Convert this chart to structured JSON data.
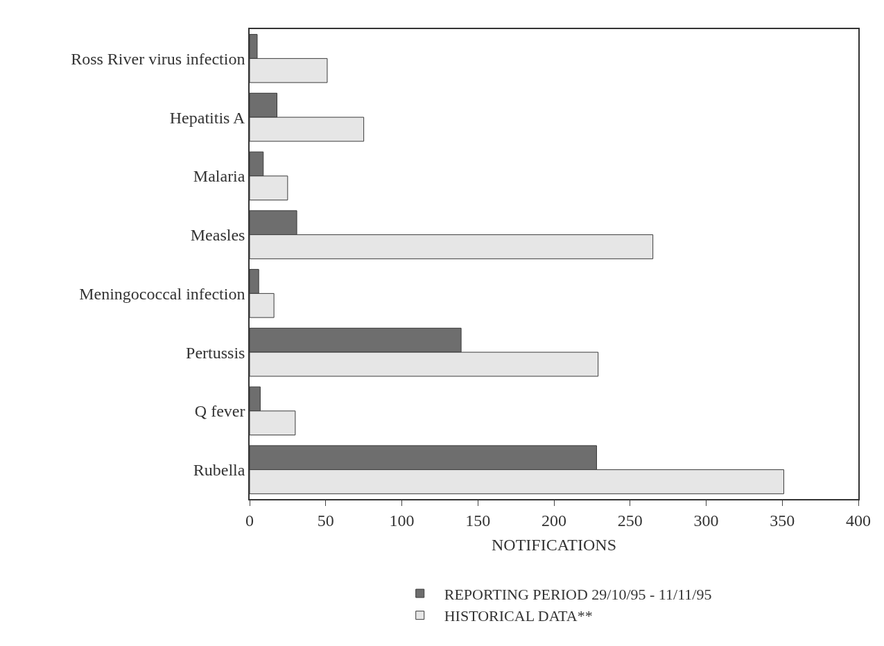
{
  "chart_data": {
    "type": "bar",
    "orientation": "horizontal",
    "xlabel": "NOTIFICATIONS",
    "categories": [
      "Ross River virus infection",
      "Hepatitis A",
      "Malaria",
      "Measles",
      "Meningococcal infection",
      "Pertussis",
      "Q fever",
      "Rubella"
    ],
    "series": [
      {
        "name": "REPORTING PERIOD 29/10/95 - 11/11/95",
        "color": "#6e6e6e",
        "values": [
          5,
          18,
          9,
          31,
          6,
          139,
          7,
          228
        ]
      },
      {
        "name": "HISTORICAL DATA**",
        "color": "#e6e6e6",
        "values": [
          51,
          75,
          25,
          265,
          16,
          229,
          30,
          351
        ]
      }
    ],
    "xlim": [
      0,
      400
    ],
    "xticks": [
      0,
      50,
      100,
      150,
      200,
      250,
      300,
      350,
      400
    ],
    "legend": "bottom"
  }
}
